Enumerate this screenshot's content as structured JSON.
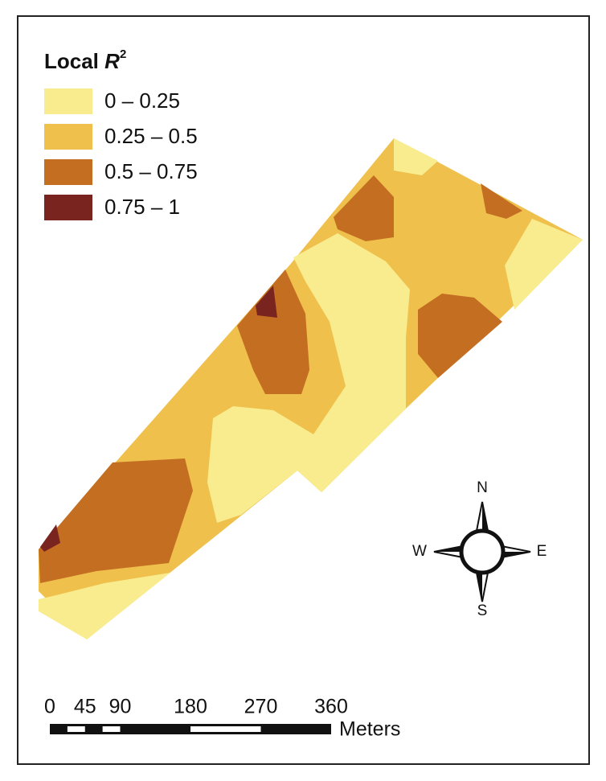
{
  "legend": {
    "title": "Local",
    "title_var": "R",
    "title_sup": "2",
    "items": [
      {
        "label": "0 – 0.25",
        "color": "#f8ec8e"
      },
      {
        "label": "0.25 – 0.5",
        "color": "#efc04c"
      },
      {
        "label": "0.5 – 0.75",
        "color": "#c46e22"
      },
      {
        "label": "0.75 – 1",
        "color": "#7a2420"
      }
    ]
  },
  "compass": {
    "north": "N",
    "south": "S",
    "west": "W",
    "east": "E"
  },
  "scale": {
    "ticks": [
      0,
      45,
      90,
      180,
      270,
      360
    ],
    "unit": "Meters"
  }
}
